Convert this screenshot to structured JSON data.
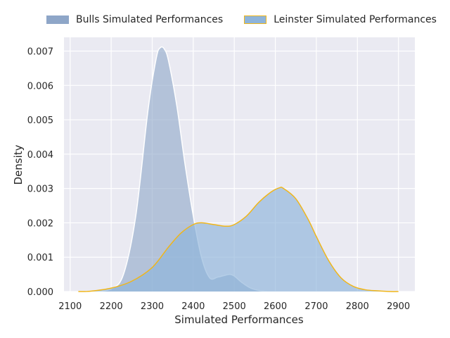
{
  "chart_data": {
    "type": "area",
    "title": "",
    "xlabel": "Simulated Performances",
    "ylabel": "Density",
    "xlim": [
      2085,
      2940
    ],
    "ylim": [
      0,
      0.0074
    ],
    "xticks": [
      "2100",
      "2200",
      "2300",
      "2400",
      "2500",
      "2600",
      "2700",
      "2800",
      "2900"
    ],
    "yticks": [
      "0.000",
      "0.001",
      "0.002",
      "0.003",
      "0.004",
      "0.005",
      "0.006",
      "0.007"
    ],
    "grid": true,
    "legend_position": "top",
    "series": [
      {
        "name": "Bulls Simulated Performances",
        "fill": "#8ea6c8",
        "fill_opacity": 0.6,
        "stroke": "#ffffff",
        "x": [
          2160,
          2200,
          2230,
          2260,
          2290,
          2310,
          2320,
          2330,
          2340,
          2360,
          2380,
          2400,
          2420,
          2440,
          2460,
          2480,
          2490,
          2500,
          2520,
          2540,
          2560,
          2580
        ],
        "y": [
          0.0,
          8e-05,
          0.0005,
          0.0022,
          0.0053,
          0.0068,
          0.0071,
          0.00705,
          0.0067,
          0.0054,
          0.0037,
          0.0022,
          0.001,
          0.0004,
          0.00042,
          0.00048,
          0.0005,
          0.00045,
          0.00025,
          0.0001,
          3e-05,
          0.0
        ]
      },
      {
        "name": "Leinster Simulated Performances",
        "fill": "#8eb4da",
        "fill_opacity": 0.65,
        "stroke": "#f0b61a",
        "x": [
          2120,
          2150,
          2200,
          2250,
          2300,
          2340,
          2370,
          2400,
          2420,
          2450,
          2480,
          2500,
          2530,
          2560,
          2590,
          2610,
          2620,
          2650,
          2680,
          2700,
          2730,
          2760,
          2790,
          2820,
          2850,
          2880,
          2900
        ],
        "y": [
          0.0,
          1e-05,
          0.0001,
          0.0003,
          0.0007,
          0.0013,
          0.0017,
          0.00195,
          0.002,
          0.00195,
          0.0019,
          0.00195,
          0.0022,
          0.0026,
          0.0029,
          0.00302,
          0.003,
          0.0027,
          0.0021,
          0.0016,
          0.0009,
          0.0004,
          0.00015,
          5e-05,
          2e-05,
          0.0,
          0.0
        ]
      }
    ]
  }
}
